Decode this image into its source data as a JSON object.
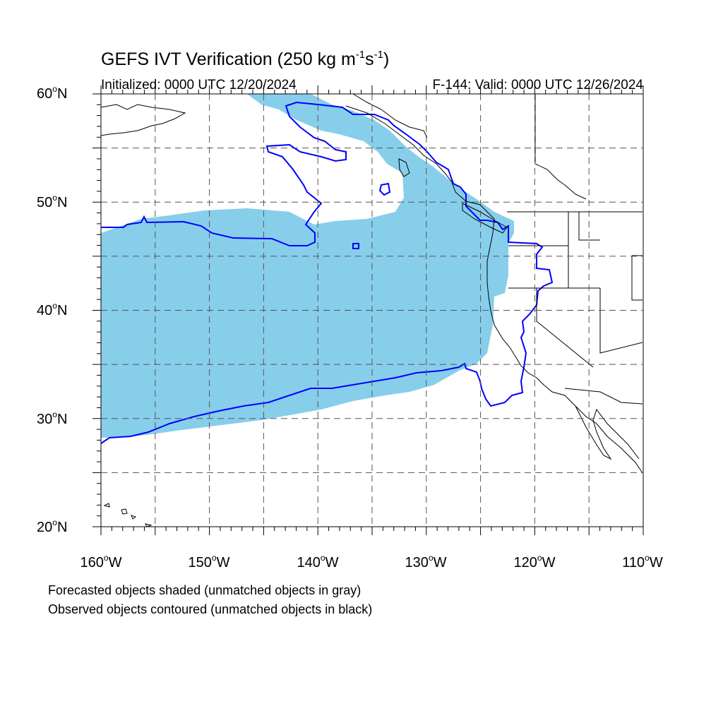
{
  "title_main": "GEFS IVT Verification (250 kg m",
  "title_exp1": "-1",
  "title_mid": "s",
  "title_exp2": "-1",
  "title_end": ")",
  "init_label": "Initialized: 0000 UTC 12/20/2024",
  "valid_label": "F-144: Valid: 0000 UTC 12/26/2024",
  "lat_labels": [
    {
      "num": "60",
      "deg": "o",
      "hem": "N"
    },
    {
      "num": "50",
      "deg": "o",
      "hem": "N"
    },
    {
      "num": "40",
      "deg": "o",
      "hem": "N"
    },
    {
      "num": "30",
      "deg": "o",
      "hem": "N"
    },
    {
      "num": "20",
      "deg": "o",
      "hem": "N"
    }
  ],
  "lon_labels": [
    {
      "num": "160",
      "deg": "o",
      "hem": "W"
    },
    {
      "num": "150",
      "deg": "o",
      "hem": "W"
    },
    {
      "num": "140",
      "deg": "o",
      "hem": "W"
    },
    {
      "num": "130",
      "deg": "o",
      "hem": "W"
    },
    {
      "num": "120",
      "deg": "o",
      "hem": "W"
    },
    {
      "num": "110",
      "deg": "o",
      "hem": "W"
    }
  ],
  "legend_line1": "Forecasted objects shaded (unmatched objects in gray)",
  "legend_line2": "Observed objects contoured (unmatched objects in black)",
  "map": {
    "lon_range": [
      -160,
      -110
    ],
    "lat_range": [
      20,
      60
    ],
    "grid_spacing_deg": 5,
    "grid_style": "dashed",
    "forecast_fill_color": "#87ceeb",
    "observed_contour_color": "#0000ff",
    "coastline_color": "#000000"
  }
}
